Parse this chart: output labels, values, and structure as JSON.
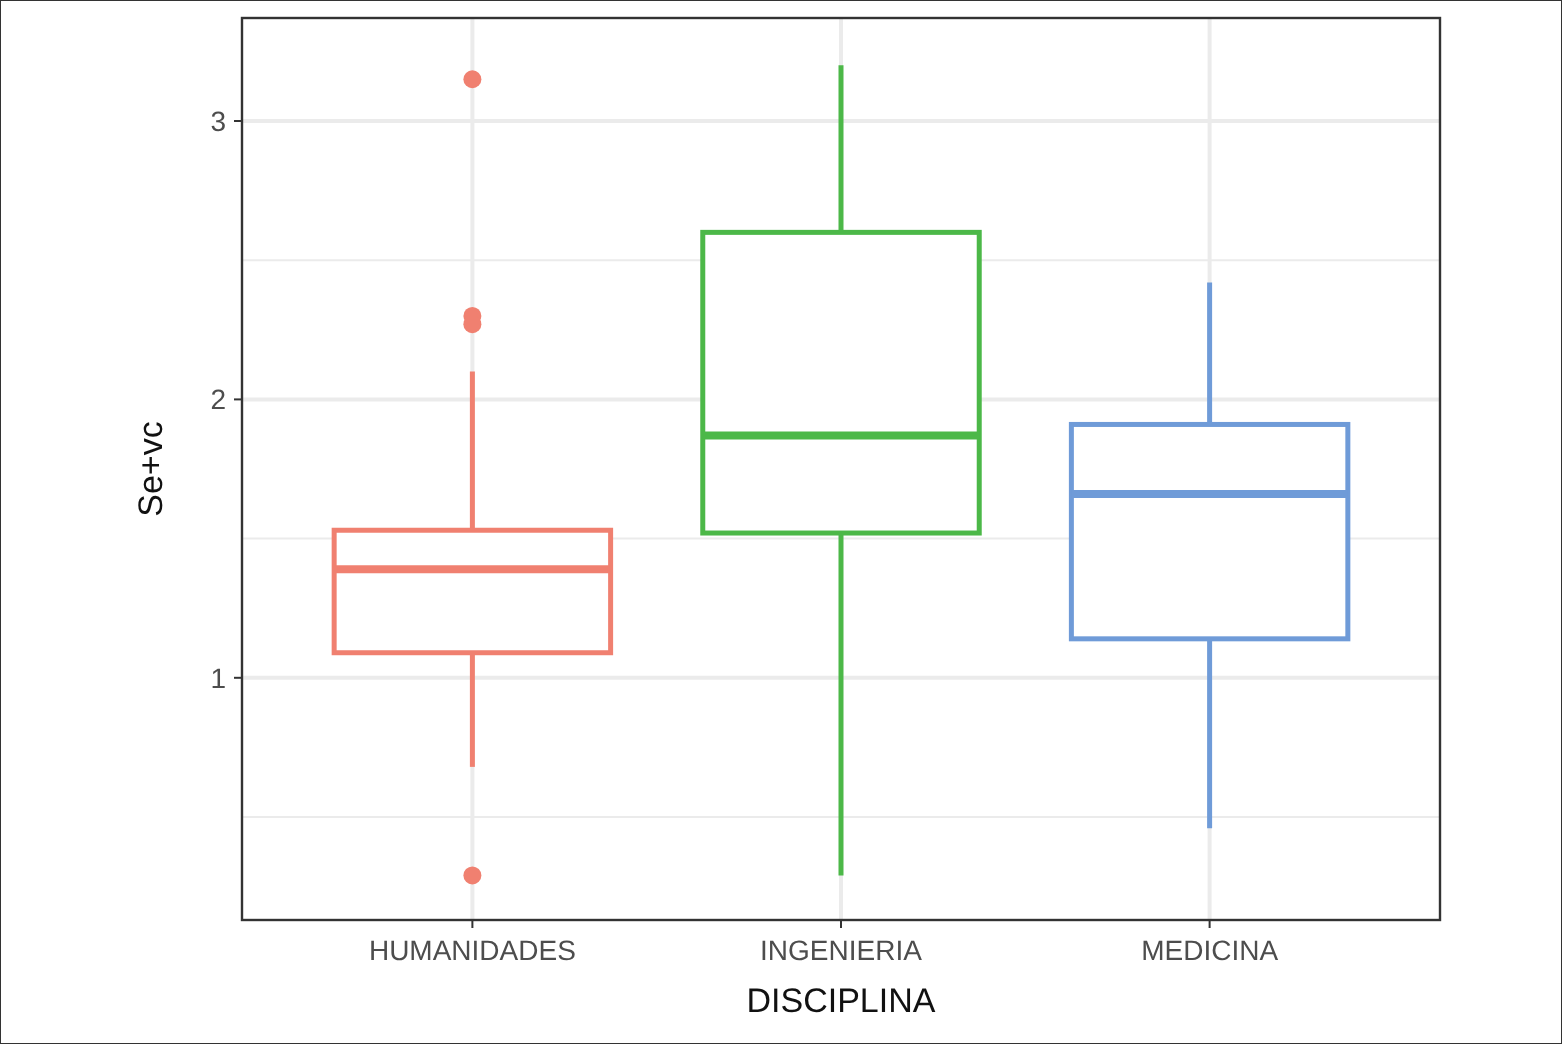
{
  "chart_data": {
    "type": "box",
    "xlabel": "DISCIPLINA",
    "ylabel": "Se+vc",
    "categories": [
      "HUMANIDADES",
      "INGENIERIA",
      "MEDICINA"
    ],
    "colors": [
      "#f08070",
      "#4cb848",
      "#6f9bd8"
    ],
    "boxes": [
      {
        "low": 0.68,
        "q1": 1.09,
        "median": 1.39,
        "q3": 1.53,
        "high": 2.1,
        "outliers": [
          3.15,
          2.3,
          2.27,
          0.29
        ]
      },
      {
        "low": 0.29,
        "q1": 1.52,
        "median": 1.87,
        "q3": 2.6,
        "high": 3.2
      },
      {
        "low": 0.46,
        "q1": 1.14,
        "median": 1.66,
        "q3": 1.91,
        "high": 2.42
      }
    ],
    "ylim": [
      0.13,
      3.37
    ],
    "yticks": [
      {
        "value": 0.5,
        "label": null
      },
      1,
      {
        "value": 1.5,
        "label": null
      },
      2,
      {
        "value": 2.5,
        "label": null
      },
      3
    ],
    "grid": true
  }
}
